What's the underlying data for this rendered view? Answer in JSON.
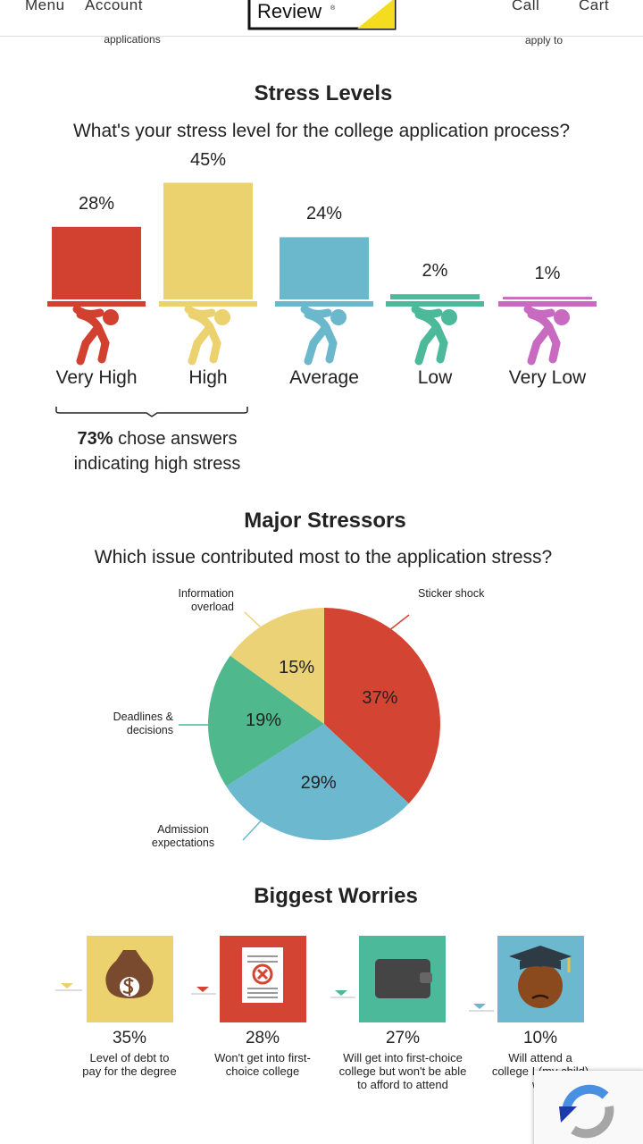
{
  "header": {
    "nav_left": [
      "Menu",
      "Account"
    ],
    "logo": "Review",
    "logo_mark": "®",
    "nav_right": [
      "Call",
      "Cart"
    ]
  },
  "cut_text": [
    "applications",
    "apply to"
  ],
  "chart_data": [
    {
      "type": "bar",
      "title": "Stress Levels",
      "subtitle": "What's your stress level for the college application process?",
      "categories": [
        "Very High",
        "High",
        "Average",
        "Low",
        "Very Low"
      ],
      "values": [
        28,
        45,
        24,
        2,
        1
      ],
      "value_labels": [
        "28%",
        "45%",
        "24%",
        "2%",
        "1%"
      ],
      "colors": [
        "#d2402f",
        "#ecd26e",
        "#6bb8cc",
        "#4cb99a",
        "#c86bc0"
      ]
    },
    {
      "type": "pie",
      "title": "Major Stressors",
      "subtitle": "Which issue contributed most to the application stress?",
      "categories": [
        "Sticker shock",
        "Admission expectations",
        "Deadlines & decisions",
        "Information overload"
      ],
      "values": [
        37,
        29,
        19,
        15
      ],
      "value_labels": [
        "37%",
        "29%",
        "19%",
        "15%"
      ],
      "colors": [
        "#d44432",
        "#6bb8cf",
        "#4fb88c",
        "#ecd276"
      ]
    }
  ],
  "annotation": {
    "highlight": "73%",
    "text": "chose answers indicating high stress"
  },
  "worries": {
    "title": "Biggest Worries",
    "items": [
      {
        "value": "35%",
        "caption": "Level of debt to pay for the degree"
      },
      {
        "value": "28%",
        "caption": "Won't get into first-choice college"
      },
      {
        "value": "27%",
        "caption": "Will get into first-choice college but won't be able to afford to attend"
      },
      {
        "value": "10%",
        "caption": "Will attend a college I (my child) will"
      }
    ]
  }
}
